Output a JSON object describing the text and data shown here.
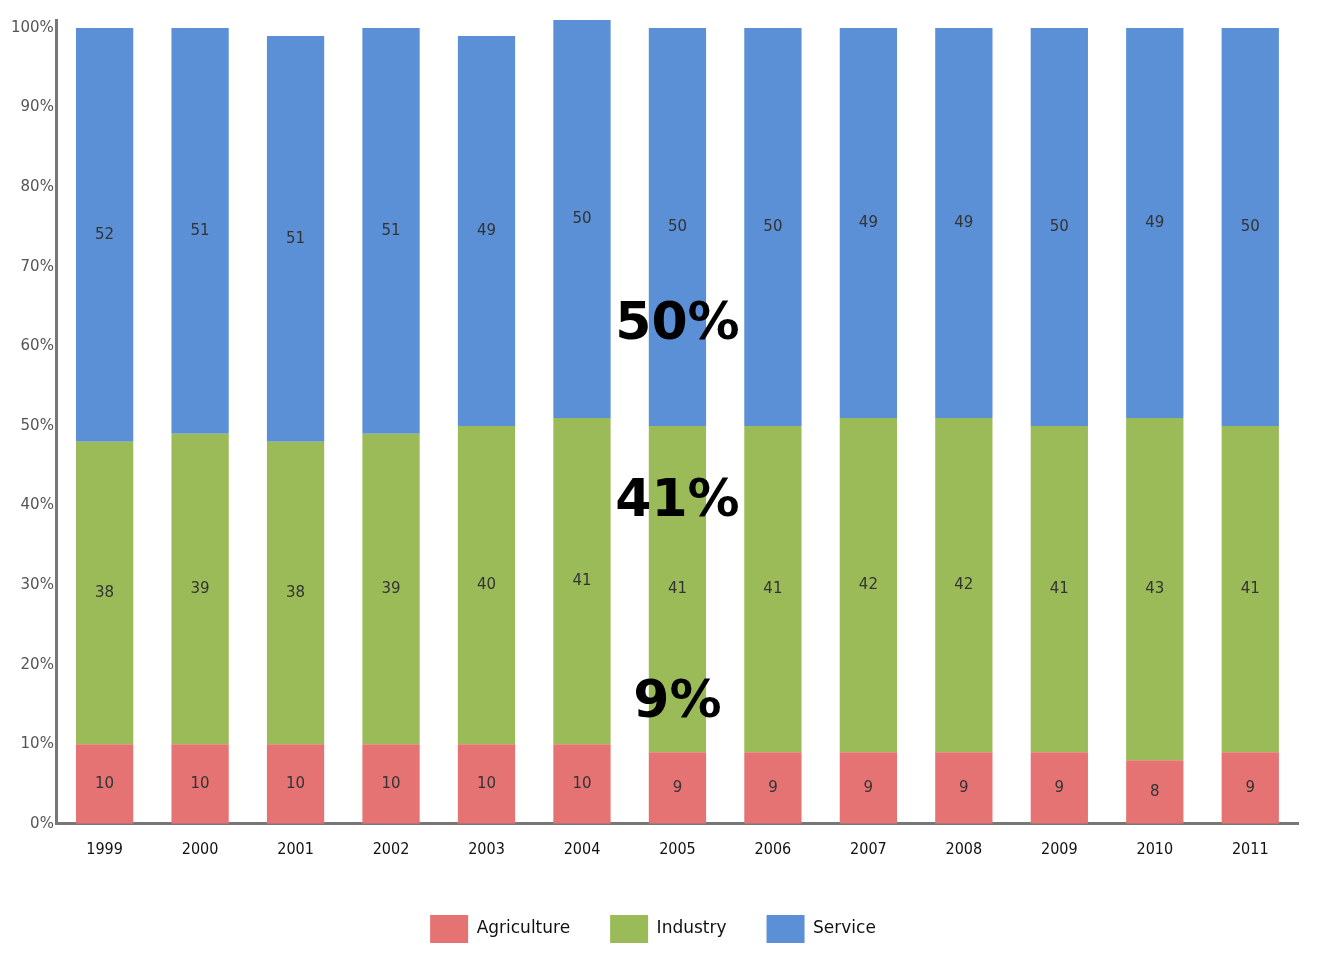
{
  "chart_data": {
    "type": "bar",
    "stacked": true,
    "categories": [
      "1999",
      "2000",
      "2001",
      "2002",
      "2003",
      "2004",
      "2005",
      "2006",
      "2007",
      "2008",
      "2009",
      "2010",
      "2011"
    ],
    "series": [
      {
        "name": "Agriculture",
        "color": "#e57373",
        "values": [
          10,
          10,
          10,
          10,
          10,
          10,
          9,
          9,
          9,
          9,
          9,
          8,
          9
        ]
      },
      {
        "name": "Industry",
        "color": "#9bbb59",
        "values": [
          38,
          39,
          38,
          39,
          40,
          41,
          41,
          41,
          42,
          42,
          41,
          43,
          41
        ]
      },
      {
        "name": "Service",
        "color": "#5b8fd6",
        "values": [
          52,
          51,
          51,
          51,
          49,
          50,
          50,
          50,
          49,
          49,
          50,
          49,
          50
        ]
      }
    ],
    "ylim": [
      0,
      101
    ],
    "yticks": [
      {
        "value": 0,
        "label": "0%"
      },
      {
        "value": 10,
        "label": "10%"
      },
      {
        "value": 20,
        "label": "20%"
      },
      {
        "value": 30,
        "label": "30%"
      },
      {
        "value": 40,
        "label": "40%"
      },
      {
        "value": 50,
        "label": "50%"
      },
      {
        "value": 60,
        "label": "60%"
      },
      {
        "value": 70,
        "label": "70%"
      },
      {
        "value": 80,
        "label": "80%"
      },
      {
        "value": 90,
        "label": "90%"
      },
      {
        "value": 100,
        "label": "100%"
      }
    ],
    "data_labels": true,
    "grid": false,
    "legend": "bottom",
    "annotations": [
      "50%",
      "41%",
      "9%"
    ]
  }
}
